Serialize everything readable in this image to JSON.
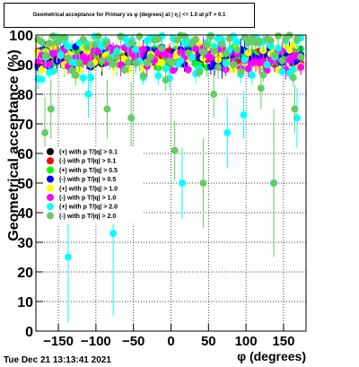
{
  "chart_data": {
    "type": "scatter",
    "title": "Geometrical acceptance for Primary vs φ (degrees) at | η | <= 1.0 at pT > 0.1",
    "xlabel": "φ (degrees)",
    "ylabel": "Geometrical acceptance (%)",
    "xlim": [
      -180,
      180
    ],
    "ylim": [
      0,
      100
    ],
    "x_ticks": [
      -150,
      -100,
      -50,
      0,
      50,
      100,
      150
    ],
    "y_ticks": [
      0,
      10,
      20,
      30,
      40,
      50,
      60,
      70,
      80,
      90,
      100
    ],
    "grid": true,
    "legend_position": "middle-left",
    "series": [
      {
        "name": "(+) with p T/|q| > 0.1",
        "color": "#000000",
        "band": [
          90,
          95
        ],
        "y": [],
        "yerr": []
      },
      {
        "name": "(-) with p T/|q| > 0.1",
        "color": "#ff0000",
        "band": [
          90,
          95
        ],
        "y": [],
        "yerr": []
      },
      {
        "name": "(+) with p T/|q| > 0.5",
        "color": "#00ff00",
        "band": [
          89,
          96
        ],
        "y": [],
        "yerr": []
      },
      {
        "name": "(-) with p T/|q| > 0.5",
        "color": "#0000ff",
        "band": [
          89,
          96
        ],
        "y": [],
        "yerr": []
      },
      {
        "name": "(+) with p T/|q| > 1.0",
        "color": "#ffff00",
        "band": [
          88,
          97
        ],
        "y": [],
        "yerr": []
      },
      {
        "name": "(-) with p T/|q| > 1.0",
        "color": "#ff00ff",
        "band": [
          88,
          96
        ],
        "y": [],
        "yerr": []
      },
      {
        "name": "(+) with p T/|q| > 2.0",
        "color": "#00ffff",
        "band": [
          85,
          100
        ],
        "y": [],
        "yerr": []
      },
      {
        "name": "(-) with p T/|q| > 2.0",
        "color": "#66cc66",
        "band": [
          84,
          100
        ],
        "y": [],
        "yerr": []
      }
    ],
    "x": [],
    "outliers": [
      {
        "series": 6,
        "x": -137,
        "y": 25,
        "err": 22
      },
      {
        "series": 6,
        "x": -77,
        "y": 33,
        "err": 28
      },
      {
        "series": 6,
        "x": 15,
        "y": 50,
        "err": 12
      },
      {
        "series": 6,
        "x": 137,
        "y": 50,
        "err": 20
      },
      {
        "series": 6,
        "x": 97,
        "y": 73,
        "err": 8
      },
      {
        "series": 6,
        "x": 75,
        "y": 67,
        "err": 12
      },
      {
        "series": 6,
        "x": 168,
        "y": 72,
        "err": 10
      },
      {
        "series": 6,
        "x": -110,
        "y": 80,
        "err": 8
      },
      {
        "series": 7,
        "x": -168,
        "y": 67,
        "err": 12
      },
      {
        "series": 7,
        "x": -160,
        "y": 75,
        "err": 10
      },
      {
        "series": 7,
        "x": 43,
        "y": 50,
        "err": 15
      },
      {
        "series": 7,
        "x": 137,
        "y": 50,
        "err": 25
      },
      {
        "series": 7,
        "x": 5,
        "y": 61,
        "err": 10
      },
      {
        "series": 7,
        "x": -53,
        "y": 72,
        "err": 12
      },
      {
        "series": 7,
        "x": -85,
        "y": 75,
        "err": 10
      },
      {
        "series": 7,
        "x": 57,
        "y": 80,
        "err": 8
      },
      {
        "series": 7,
        "x": 165,
        "y": 75,
        "err": 8
      },
      {
        "series": 7,
        "x": 120,
        "y": 82,
        "err": 7
      }
    ]
  },
  "footer": {
    "timestamp": "Tue Dec 21 13:13:41 2021"
  }
}
